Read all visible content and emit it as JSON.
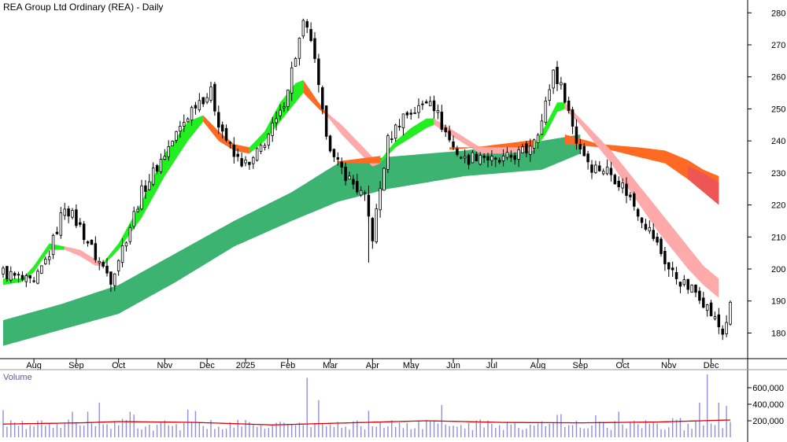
{
  "chart_data": {
    "type": "candlestick",
    "title": "REA Group Ltd Ordinary (REA) - Daily",
    "price_axis": {
      "ylim": [
        172,
        284
      ],
      "ticks": [
        180,
        190,
        200,
        210,
        220,
        230,
        240,
        250,
        260,
        270,
        280
      ],
      "position": "right"
    },
    "x_axis_labels": [
      "Aug",
      "Sep",
      "Oct",
      "Nov",
      "Dec",
      "2025",
      "Feb",
      "Mar",
      "Apr",
      "May",
      "Jun",
      "Jul",
      "Aug",
      "Sep",
      "Oct",
      "Nov",
      "Dec"
    ],
    "price_anchors": [
      [
        0,
        199
      ],
      [
        8,
        195
      ],
      [
        12,
        205
      ],
      [
        16,
        220
      ],
      [
        20,
        213
      ],
      [
        24,
        204
      ],
      [
        28,
        197
      ],
      [
        32,
        210
      ],
      [
        36,
        224
      ],
      [
        40,
        232
      ],
      [
        45,
        242
      ],
      [
        50,
        252
      ],
      [
        54,
        255
      ],
      [
        56,
        246
      ],
      [
        60,
        235
      ],
      [
        64,
        232
      ],
      [
        68,
        240
      ],
      [
        72,
        248
      ],
      [
        75,
        262
      ],
      [
        78,
        276
      ],
      [
        80,
        272
      ],
      [
        83,
        248
      ],
      [
        86,
        234
      ],
      [
        90,
        228
      ],
      [
        94,
        222
      ],
      [
        96,
        210
      ],
      [
        98,
        225
      ],
      [
        100,
        240
      ],
      [
        104,
        248
      ],
      [
        108,
        250
      ],
      [
        111,
        254
      ],
      [
        114,
        245
      ],
      [
        117,
        238
      ],
      [
        120,
        234
      ],
      [
        124,
        236
      ],
      [
        128,
        233
      ],
      [
        132,
        235
      ],
      [
        136,
        237
      ],
      [
        140,
        246
      ],
      [
        143,
        262
      ],
      [
        146,
        254
      ],
      [
        149,
        240
      ],
      [
        153,
        232
      ],
      [
        157,
        231
      ],
      [
        161,
        226
      ],
      [
        165,
        218
      ],
      [
        169,
        210
      ],
      [
        173,
        200
      ],
      [
        177,
        195
      ],
      [
        181,
        192
      ],
      [
        184,
        186
      ],
      [
        187,
        180
      ],
      [
        189,
        188
      ]
    ],
    "long_ribbon": [
      [
        0,
        176,
        184
      ],
      [
        15,
        181,
        189
      ],
      [
        30,
        186,
        195
      ],
      [
        45,
        196,
        205
      ],
      [
        60,
        207,
        215
      ],
      [
        75,
        215,
        224
      ],
      [
        87,
        221,
        233
      ],
      [
        100,
        225,
        235
      ],
      [
        120,
        229,
        237
      ],
      [
        140,
        231,
        240
      ],
      [
        150,
        236,
        242
      ]
    ],
    "ma_ribbons": [
      {
        "color": "#22ee22",
        "points": [
          [
            0,
            195,
            197
          ],
          [
            5,
            196,
            197
          ],
          [
            8,
            199,
            201
          ],
          [
            12,
            206,
            208
          ],
          [
            16,
            206,
            207
          ]
        ]
      },
      {
        "color": "#ffaaaa",
        "points": [
          [
            16,
            206,
            207
          ],
          [
            20,
            204,
            206
          ],
          [
            24,
            201,
            203
          ],
          [
            26,
            201,
            202
          ]
        ]
      },
      {
        "color": "#22ee22",
        "points": [
          [
            26,
            201,
            202
          ],
          [
            30,
            206,
            208
          ],
          [
            36,
            216,
            221
          ],
          [
            42,
            229,
            236
          ],
          [
            48,
            240,
            246
          ],
          [
            52,
            246,
            248
          ]
        ]
      },
      {
        "color": "#ff6a22",
        "points": [
          [
            52,
            246,
            248
          ],
          [
            56,
            240,
            243
          ],
          [
            60,
            237,
            239
          ],
          [
            64,
            236,
            238
          ]
        ]
      },
      {
        "color": "#22ee22",
        "points": [
          [
            64,
            236,
            238
          ],
          [
            68,
            240,
            243
          ],
          [
            72,
            246,
            252
          ],
          [
            76,
            252,
            258
          ],
          [
            78,
            255,
            259
          ]
        ]
      },
      {
        "color": "#ff6a22",
        "points": [
          [
            78,
            255,
            259
          ],
          [
            82,
            250,
            252
          ],
          [
            84,
            248,
            249
          ]
        ]
      },
      {
        "color": "#ffaaaa",
        "points": [
          [
            84,
            248,
            249
          ],
          [
            88,
            242,
            245
          ],
          [
            92,
            237,
            240
          ],
          [
            96,
            232,
            235
          ],
          [
            98,
            233,
            234
          ]
        ]
      },
      {
        "color": "#22ee22",
        "points": [
          [
            98,
            233,
            234
          ],
          [
            102,
            238,
            240
          ],
          [
            106,
            241,
            244
          ],
          [
            110,
            244,
            247
          ],
          [
            112,
            245,
            247
          ]
        ]
      },
      {
        "color": "#ffaaaa",
        "points": [
          [
            112,
            245,
            247
          ],
          [
            116,
            242,
            244
          ],
          [
            120,
            239,
            241
          ],
          [
            124,
            236,
            238
          ],
          [
            130,
            236,
            238
          ],
          [
            138,
            237,
            239
          ]
        ]
      },
      {
        "color": "#22ee22",
        "points": [
          [
            138,
            237,
            239
          ],
          [
            141,
            242,
            245
          ],
          [
            144,
            249,
            252
          ],
          [
            146,
            250,
            252
          ]
        ]
      },
      {
        "color": "#ffaaaa",
        "points": [
          [
            146,
            250,
            252
          ],
          [
            150,
            245,
            247
          ],
          [
            154,
            239,
            242
          ],
          [
            158,
            233,
            237
          ],
          [
            162,
            226,
            231
          ],
          [
            166,
            219,
            225
          ],
          [
            170,
            212,
            219
          ],
          [
            174,
            206,
            213
          ],
          [
            178,
            200,
            207
          ],
          [
            182,
            195,
            201
          ],
          [
            186,
            191,
            197
          ]
        ]
      }
    ],
    "orange_ribbon": [
      [
        146,
        239,
        242
      ],
      [
        155,
        238,
        239
      ],
      [
        165,
        235,
        238
      ],
      [
        172,
        233,
        237
      ],
      [
        178,
        228,
        234
      ],
      [
        182,
        225,
        231
      ],
      [
        186,
        221,
        229
      ]
    ],
    "orange_blocks": [
      [
        87,
        98
      ],
      [
        116,
        138
      ]
    ],
    "volume": {
      "label": "Volume",
      "ticks": [
        200000,
        400000,
        600000
      ],
      "tick_labels": [
        "200,000",
        "400,000",
        "600,000"
      ],
      "ylim": [
        0,
        800000
      ],
      "baseline_level": 150000,
      "spikes": [
        [
          18,
          310000
        ],
        [
          22,
          310000
        ],
        [
          25,
          420000
        ],
        [
          33,
          310000
        ],
        [
          79,
          720000
        ],
        [
          82,
          450000
        ],
        [
          95,
          320000
        ],
        [
          114,
          390000
        ],
        [
          160,
          310000
        ],
        [
          181,
          420000
        ],
        [
          183,
          760000
        ],
        [
          186,
          420000
        ],
        [
          188,
          380000
        ]
      ],
      "moving_average": [
        [
          0,
          160000
        ],
        [
          20,
          175000
        ],
        [
          30,
          190000
        ],
        [
          50,
          180000
        ],
        [
          70,
          150000
        ],
        [
          90,
          175000
        ],
        [
          110,
          200000
        ],
        [
          130,
          180000
        ],
        [
          150,
          175000
        ],
        [
          170,
          185000
        ],
        [
          189,
          210000
        ]
      ]
    },
    "colors": {
      "long_ribbon": "#3cb371",
      "up_ribbon": "#22ee22",
      "down_ribbon": "#ffaaaa",
      "orange": "#ff6a22",
      "volume_bar": "#8f8fdf",
      "volume_ma": "#dd0000",
      "grid": "#000000"
    }
  }
}
